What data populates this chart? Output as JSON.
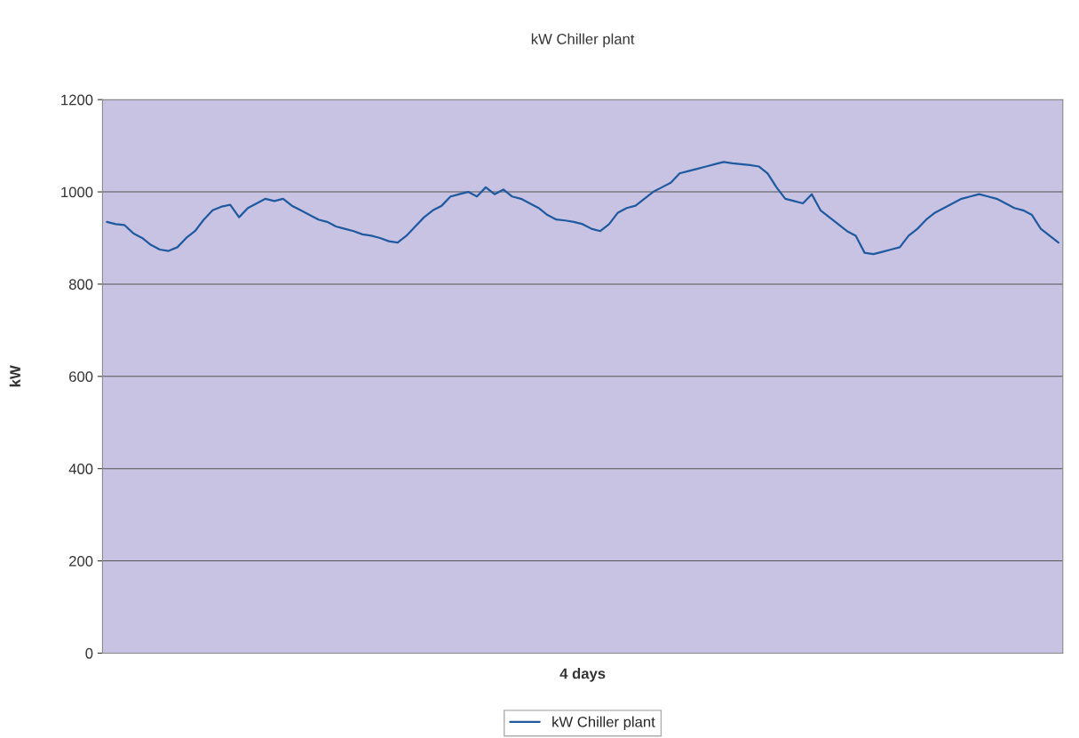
{
  "chart_data": {
    "type": "line",
    "title": "kW Chiller plant",
    "xlabel": "4 days",
    "ylabel": "kW",
    "categories": [
      null,
      null,
      null,
      null,
      null,
      null,
      null,
      null,
      null,
      null,
      null,
      null,
      null,
      null,
      null,
      null,
      null,
      null,
      null,
      null,
      null,
      null,
      null,
      null,
      null,
      null,
      null,
      null,
      null,
      null,
      null,
      null,
      null,
      null,
      null,
      null,
      null,
      null,
      null,
      null,
      null,
      null,
      null,
      null,
      null,
      null,
      null,
      null,
      null,
      null,
      null,
      null,
      null,
      null,
      null,
      null,
      null,
      null,
      null,
      null,
      null,
      null,
      null,
      null,
      null,
      null,
      null,
      null,
      null,
      null,
      null,
      null,
      null,
      null,
      null,
      null,
      null,
      null,
      null,
      null,
      null,
      null,
      null,
      null,
      null,
      null,
      null,
      null,
      null,
      null,
      null,
      null,
      null,
      null,
      null,
      null,
      null,
      null,
      null,
      null,
      null,
      null,
      null,
      null,
      null,
      null,
      null,
      null,
      null
    ],
    "series": [
      {
        "name": "kW Chiller plant",
        "color": "#1f5aa0",
        "values": [
          935,
          930,
          928,
          910,
          900,
          885,
          875,
          872,
          880,
          900,
          915,
          940,
          960,
          968,
          972,
          945,
          965,
          975,
          985,
          980,
          985,
          970,
          960,
          950,
          940,
          935,
          925,
          920,
          915,
          908,
          905,
          900,
          893,
          890,
          905,
          925,
          945,
          960,
          970,
          990,
          995,
          1000,
          990,
          1010,
          995,
          1005,
          990,
          985,
          975,
          965,
          950,
          940,
          938,
          935,
          930,
          920,
          915,
          930,
          955,
          965,
          970,
          985,
          1000,
          1010,
          1020,
          1040,
          1045,
          1050,
          1055,
          1060,
          1065,
          1062,
          1060,
          1058,
          1055,
          1040,
          1010,
          985,
          980,
          975,
          995,
          960,
          945,
          930,
          915,
          905,
          868,
          865,
          870,
          875,
          880,
          905,
          920,
          940,
          955,
          965,
          975,
          985,
          990,
          995,
          990,
          985,
          975,
          965,
          960,
          950,
          920,
          905,
          890
        ]
      }
    ],
    "ylim": [
      0,
      1200
    ],
    "yticks": [
      0,
      200,
      400,
      600,
      800,
      1000,
      1200
    ],
    "grid": "y",
    "legend": "bottom",
    "tick_labels": "y",
    "marker": "none",
    "line_style": "solid"
  }
}
